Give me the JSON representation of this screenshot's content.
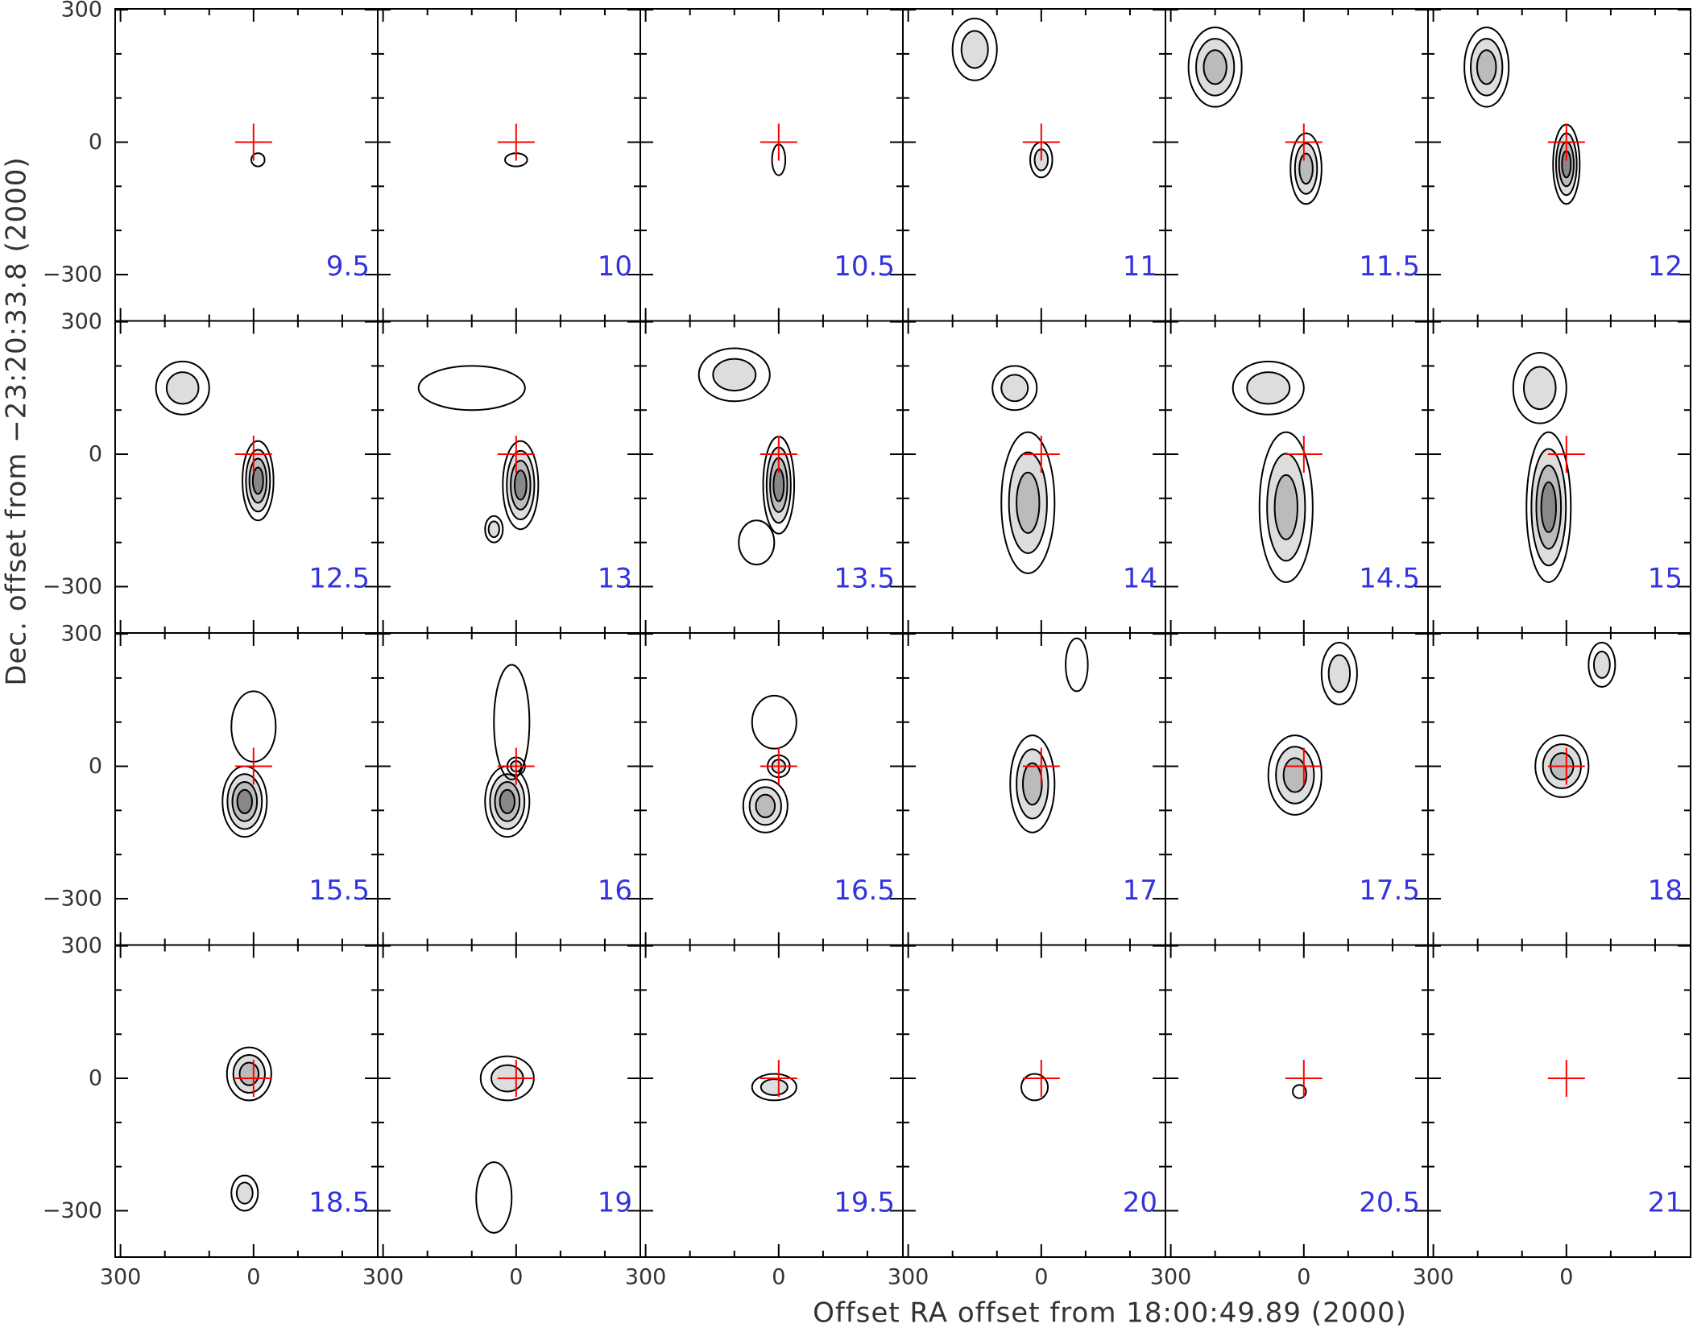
{
  "chart_data": {
    "type": "channel-map",
    "xlabel": "Offset RA offset from 18:00:49.89 (2000)",
    "ylabel": "Dec. offset from −23:20:33.8 (2000)",
    "channels": [
      9.5,
      10,
      10.5,
      11,
      11.5,
      12,
      12.5,
      13,
      13.5,
      14,
      14.5,
      15,
      15.5,
      16,
      16.5,
      17,
      17.5,
      18,
      18.5,
      19,
      19.5,
      20,
      20.5,
      21
    ],
    "channel_color": "#3333dd",
    "xlim": [
      312,
      -280
    ],
    "xticks": [
      300,
      0
    ],
    "xminorticks": [
      200,
      100,
      -100,
      -200
    ],
    "ylim": [
      -405,
      302
    ],
    "yticks": [
      300,
      0,
      {
        "value": -300,
        "label": "−300"
      }
    ],
    "yminorticks": [
      200,
      100,
      -100,
      -200
    ],
    "reference_color": "#ff0000"
  }
}
